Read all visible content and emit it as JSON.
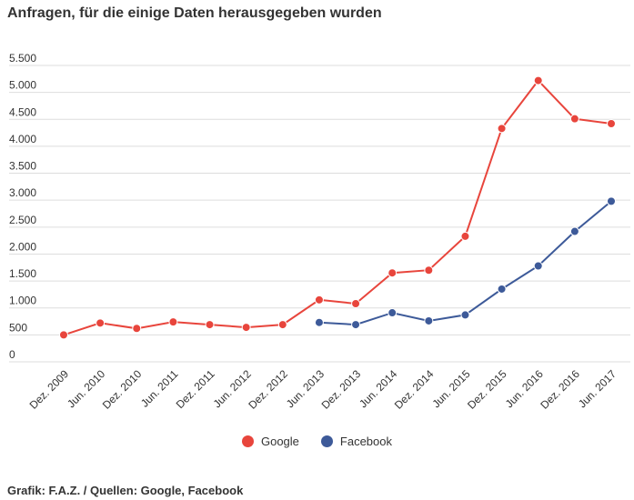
{
  "page": {
    "title": "Anfragen, für die einige Daten herausgegeben wurden",
    "footer": "Grafik: F.A.Z. / Quellen: Google, Facebook"
  },
  "legend": {
    "google_label": "Google",
    "facebook_label": "Facebook"
  },
  "colors": {
    "google": "#e8453c",
    "facebook": "#3d5a99",
    "grid": "#dddddd"
  },
  "chart_data": {
    "type": "line",
    "title": "Anfragen, für die einige Daten herausgegeben wurden",
    "xlabel": "",
    "ylabel": "",
    "categories": [
      "Dez. 2009",
      "Jun. 2010",
      "Dez. 2010",
      "Jun. 2011",
      "Dez. 2011",
      "Jun. 2012",
      "Dez. 2012",
      "Jun. 2013",
      "Dez. 2013",
      "Jun. 2014",
      "Dez. 2014",
      "Jun. 2015",
      "Dez. 2015",
      "Jun. 2016",
      "Dez. 2016",
      "Jun. 2017"
    ],
    "y_ticks": [
      0,
      500,
      1000,
      1500,
      2000,
      2500,
      3000,
      3500,
      4000,
      4500,
      5000,
      5500
    ],
    "y_tick_labels": [
      "0",
      "500",
      "1.000",
      "1.500",
      "2.000",
      "2.500",
      "3.000",
      "3.500",
      "4.000",
      "4.500",
      "5.000",
      "5.500"
    ],
    "ylim": [
      0,
      5500
    ],
    "grid": true,
    "legend_position": "bottom",
    "series": [
      {
        "name": "Google",
        "color": "#e8453c",
        "values": [
          500,
          720,
          620,
          740,
          690,
          640,
          690,
          1150,
          1080,
          1650,
          1700,
          2330,
          4330,
          5220,
          4510,
          4420
        ]
      },
      {
        "name": "Facebook",
        "color": "#3d5a99",
        "values": [
          null,
          null,
          null,
          null,
          null,
          null,
          null,
          730,
          690,
          910,
          760,
          870,
          1350,
          1780,
          2420,
          2980
        ]
      }
    ]
  }
}
